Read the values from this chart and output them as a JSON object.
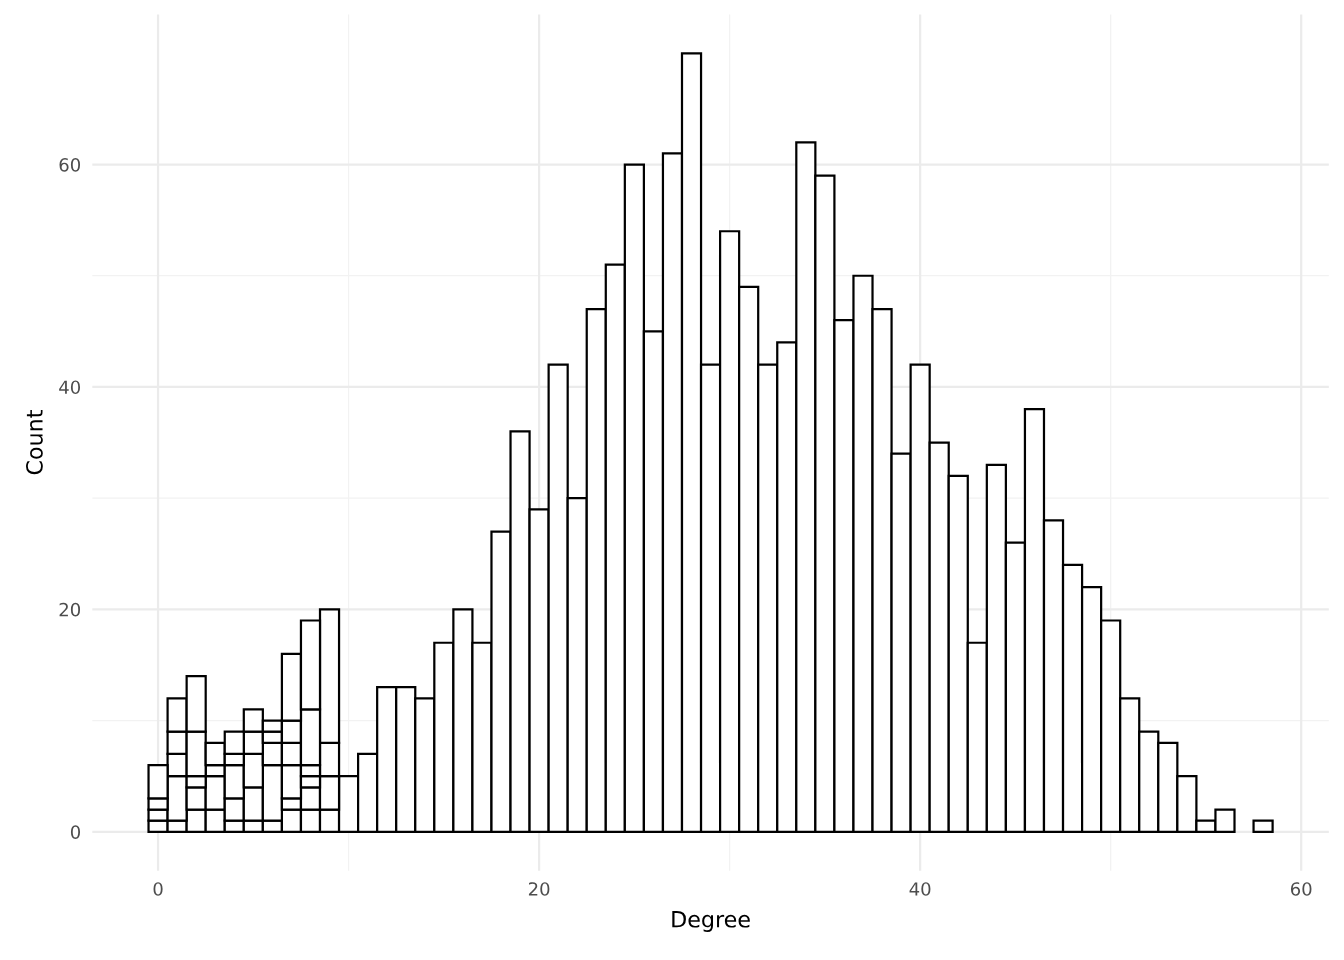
{
  "chart_data": {
    "type": "bar",
    "xlabel": "Degree",
    "ylabel": "Count",
    "x": [
      0,
      1,
      2,
      3,
      4,
      5,
      6,
      7,
      8,
      9,
      10,
      11,
      12,
      13,
      14,
      15,
      16,
      17,
      18,
      19,
      20,
      21,
      22,
      23,
      24,
      25,
      26,
      27,
      28,
      29,
      30,
      31,
      32,
      33,
      34,
      35,
      36,
      37,
      38,
      39,
      40,
      41,
      42,
      43,
      44,
      45,
      46,
      47,
      48,
      49,
      50,
      51,
      52,
      53,
      54,
      55,
      56,
      57,
      58
    ],
    "stacked": true,
    "series": [
      {
        "color": "#ffffff",
        "values": [
          1,
          1,
          2,
          2,
          1,
          1,
          1,
          2,
          2,
          2,
          5,
          7,
          13,
          13,
          12,
          17,
          20,
          17,
          27,
          36,
          29,
          42,
          30,
          47,
          51,
          60,
          45,
          61,
          70,
          42,
          54,
          49,
          42,
          44,
          62,
          59,
          46,
          50,
          47,
          34,
          42,
          35,
          32,
          17,
          33,
          26,
          38,
          28,
          24,
          22,
          19,
          12,
          9,
          8,
          5,
          1,
          2,
          0,
          1
        ]
      },
      {
        "color": "#ffffff",
        "values": [
          1,
          4,
          2,
          3,
          2,
          3,
          5,
          1,
          2,
          3,
          null,
          null,
          null,
          null,
          null,
          null,
          null,
          null,
          null,
          null,
          null,
          null,
          null,
          null,
          null,
          null,
          null,
          null,
          null,
          null,
          null,
          null,
          null,
          null,
          null,
          null,
          null,
          null,
          null,
          null,
          null,
          null,
          null,
          null,
          null,
          null,
          null,
          null,
          null,
          null,
          null,
          null,
          null,
          null,
          null,
          null,
          null,
          null,
          null
        ]
      },
      {
        "color": "#ffffff",
        "values": [
          1,
          2,
          1,
          1,
          3,
          3,
          2,
          3,
          1,
          3,
          null,
          null,
          null,
          null,
          null,
          null,
          null,
          null,
          null,
          null,
          null,
          null,
          null,
          null,
          null,
          null,
          null,
          null,
          null,
          null,
          null,
          null,
          null,
          null,
          null,
          null,
          null,
          null,
          null,
          null,
          null,
          null,
          null,
          null,
          null,
          null,
          null,
          null,
          null,
          null,
          null,
          null,
          null,
          null,
          null,
          null,
          null,
          null,
          null
        ]
      },
      {
        "color": "#ffffff",
        "values": [
          3,
          2,
          4,
          2,
          1,
          2,
          1,
          2,
          1,
          12,
          null,
          null,
          null,
          null,
          null,
          null,
          null,
          null,
          null,
          null,
          null,
          null,
          null,
          null,
          null,
          null,
          null,
          null,
          null,
          null,
          null,
          null,
          null,
          null,
          null,
          null,
          null,
          null,
          null,
          null,
          null,
          null,
          null,
          null,
          null,
          null,
          null,
          null,
          null,
          null,
          null,
          null,
          null,
          null,
          null,
          null,
          null,
          null,
          null
        ]
      },
      {
        "color": "#ffffff",
        "values": [
          null,
          3,
          5,
          null,
          2,
          2,
          1,
          2,
          5,
          null,
          null,
          null,
          null,
          null,
          null,
          null,
          null,
          null,
          null,
          null,
          null,
          null,
          null,
          null,
          null,
          null,
          null,
          null,
          null,
          null,
          null,
          null,
          null,
          null,
          null,
          null,
          null,
          null,
          null,
          null,
          null,
          null,
          null,
          null,
          null,
          null,
          null,
          null,
          null,
          null,
          null,
          null,
          null,
          null,
          null,
          null,
          null,
          null,
          null
        ]
      },
      {
        "color": "#ffffff",
        "values": [
          null,
          null,
          null,
          null,
          null,
          null,
          null,
          6,
          8,
          null,
          null,
          null,
          null,
          null,
          null,
          null,
          null,
          null,
          null,
          null,
          null,
          null,
          null,
          null,
          null,
          null,
          null,
          null,
          null,
          null,
          null,
          null,
          null,
          null,
          null,
          null,
          null,
          null,
          null,
          null,
          null,
          null,
          null,
          null,
          null,
          null,
          null,
          null,
          null,
          null,
          null,
          null,
          null,
          null,
          null,
          null,
          null,
          null,
          null
        ]
      }
    ],
    "xlim": [
      -3.45,
      61.45
    ],
    "ylim": [
      -3.5,
      73.5
    ],
    "xticks": [
      0,
      20,
      40,
      60
    ],
    "yticks": [
      0,
      20,
      40,
      60
    ],
    "grid": true
  }
}
